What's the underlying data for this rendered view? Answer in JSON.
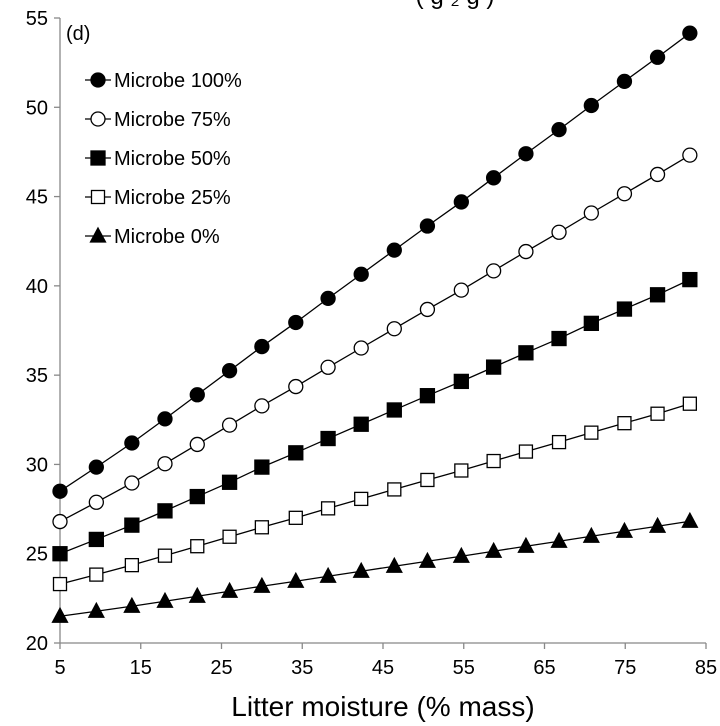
{
  "chart_data": {
    "type": "line",
    "panel_label": "(d)",
    "title_partial": "( g   ₂ g        )",
    "xlabel": "Litter moisture (% mass)",
    "ylabel": "",
    "xlim": [
      5,
      85
    ],
    "ylim": [
      20,
      55
    ],
    "xticks": [
      5,
      15,
      25,
      35,
      45,
      55,
      65,
      75,
      85
    ],
    "yticks": [
      20,
      25,
      30,
      35,
      40,
      45,
      50,
      55
    ],
    "grid": false,
    "legend_position": "top-left",
    "x": [
      5.0,
      9.5,
      13.9,
      18.0,
      22.0,
      26.0,
      30.0,
      34.2,
      38.2,
      42.3,
      46.4,
      50.5,
      54.7,
      58.7,
      62.7,
      66.8,
      70.8,
      74.9,
      79.0,
      83.0
    ],
    "series": [
      {
        "name": "Microbe 100%",
        "marker": "filled-circle",
        "values": [
          28.5,
          29.85,
          31.2,
          32.55,
          33.9,
          35.25,
          36.6,
          37.95,
          39.3,
          40.65,
          42.0,
          43.35,
          44.7,
          46.05,
          47.4,
          48.75,
          50.1,
          51.45,
          52.8,
          54.15
        ]
      },
      {
        "name": "Microbe 75%",
        "marker": "open-circle",
        "values": [
          26.8,
          27.88,
          28.96,
          30.04,
          31.12,
          32.2,
          33.28,
          34.36,
          35.44,
          36.52,
          37.6,
          38.68,
          39.76,
          40.84,
          41.92,
          43.0,
          44.08,
          45.16,
          46.24,
          47.32
        ]
      },
      {
        "name": "Microbe 50%",
        "marker": "filled-square",
        "values": [
          25.0,
          25.8,
          26.6,
          27.4,
          28.2,
          29.0,
          29.85,
          30.65,
          31.45,
          32.25,
          33.05,
          33.85,
          34.65,
          35.45,
          36.25,
          37.05,
          37.9,
          38.7,
          39.5,
          40.35
        ]
      },
      {
        "name": "Microbe 25%",
        "marker": "open-square",
        "values": [
          23.3,
          23.83,
          24.36,
          24.89,
          25.42,
          25.95,
          26.48,
          27.01,
          27.54,
          28.07,
          28.6,
          29.13,
          29.66,
          30.19,
          30.72,
          31.25,
          31.78,
          32.31,
          32.84,
          33.4
        ]
      },
      {
        "name": "Microbe 0%",
        "marker": "filled-triangle",
        "values": [
          21.5,
          21.78,
          22.06,
          22.34,
          22.62,
          22.9,
          23.18,
          23.46,
          23.74,
          24.02,
          24.3,
          24.58,
          24.86,
          25.14,
          25.42,
          25.7,
          25.98,
          26.26,
          26.54,
          26.82
        ]
      }
    ]
  }
}
